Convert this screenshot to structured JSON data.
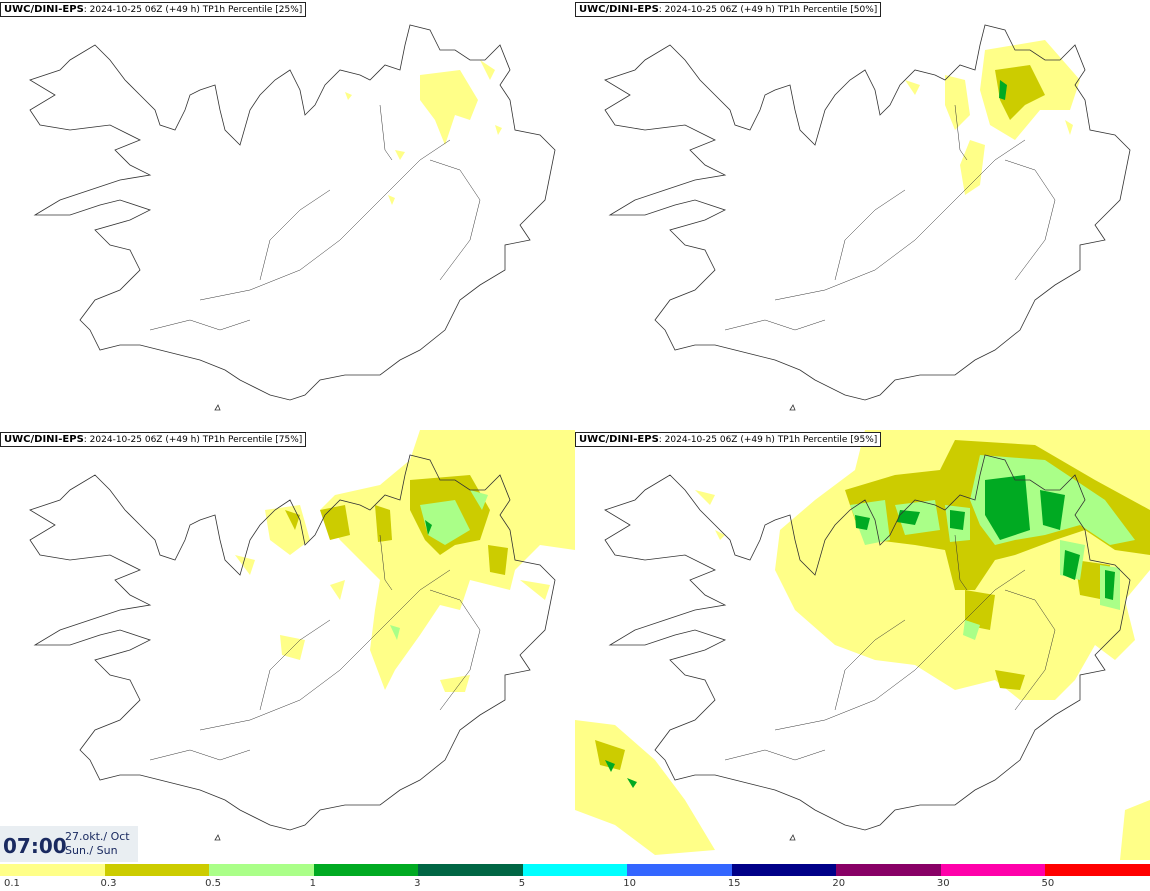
{
  "model": "UWC/DINI-EPS",
  "run_info": "2024-10-25 06Z (+49 h)",
  "variable": "TP1h Percentile",
  "panels": [
    {
      "percentile": "[25%]"
    },
    {
      "percentile": "[50%]"
    },
    {
      "percentile": "[75%]"
    },
    {
      "percentile": "[95%]"
    }
  ],
  "time": {
    "clock": "07:00",
    "date": "27.okt./ Oct",
    "day": "Sun./ Sun"
  },
  "legend": {
    "colors": [
      "#ffff88",
      "#cccc00",
      "#aaff88",
      "#00aa22",
      "#006644",
      "#00ffff",
      "#3366ff",
      "#000088",
      "#880066",
      "#ff00aa",
      "#ff0000"
    ],
    "labels": [
      "0.1",
      "0.3",
      "0.5",
      "1",
      "3",
      "5",
      "10",
      "15",
      "20",
      "30",
      "50"
    ]
  },
  "precip_colors": {
    "light": "#ffff88",
    "olive": "#cccc00",
    "lightgreen": "#aaff88",
    "green": "#00aa22"
  }
}
